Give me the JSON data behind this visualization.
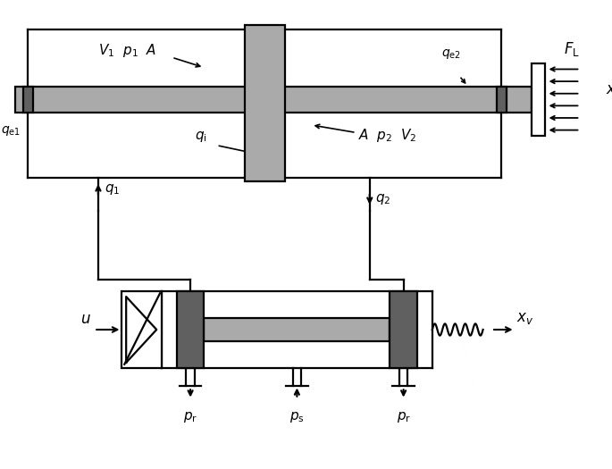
{
  "fig_width": 6.85,
  "fig_height": 5.25,
  "dpi": 100,
  "bg_color": "#ffffff",
  "line_color": "#000000",
  "gray_color": "#aaaaaa",
  "dark_gray": "#606060",
  "lw": 1.6,
  "lw_thick": 2.0
}
